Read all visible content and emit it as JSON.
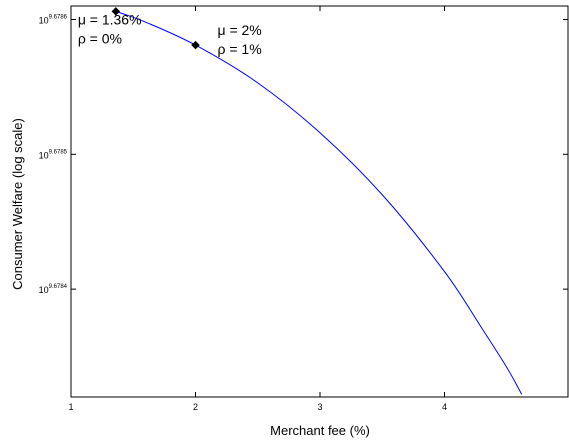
{
  "chart_data": {
    "type": "line",
    "title": "",
    "xlabel": "Merchant fee (%)",
    "ylabel": "Consumer Welfare (log scale)",
    "xlim": [
      1,
      5
    ],
    "ylim": [
      9.67832,
      9.67861
    ],
    "x_ticks": [
      {
        "value": 1,
        "label": "1"
      },
      {
        "value": 2,
        "label": "2"
      },
      {
        "value": 3,
        "label": "3"
      },
      {
        "value": 4,
        "label": "4"
      }
    ],
    "y_ticks": [
      {
        "value": 9.6784,
        "base": "10",
        "exp": "9.6784"
      },
      {
        "value": 9.6785,
        "base": "10",
        "exp": "9.6785"
      },
      {
        "value": 9.6786,
        "base": "10",
        "exp": "9.6786"
      }
    ],
    "y_scale": "log",
    "grid": false,
    "legend": "none",
    "series": [
      {
        "color": "#0000ff",
        "x": [
          1.36,
          1.6,
          2.0,
          2.5,
          3.0,
          3.5,
          4.0,
          4.3,
          4.5,
          4.62
        ],
        "y": [
          9.678606,
          9.678598,
          9.678581,
          9.678553,
          9.678516,
          9.67847,
          9.678413,
          9.678371,
          9.678342,
          9.678322
        ]
      }
    ],
    "markers": [
      {
        "x": 1.36,
        "y": 9.678606
      },
      {
        "x": 2.0,
        "y": 9.678581
      }
    ],
    "annotations": [
      {
        "lines": [
          "μ = 1.36%",
          "ρ = 0%"
        ],
        "x": 1.36,
        "y": 9.678606
      },
      {
        "lines": [
          "μ = 2%",
          "ρ = 1%"
        ],
        "x": 2.0,
        "y": 9.678581
      }
    ]
  }
}
